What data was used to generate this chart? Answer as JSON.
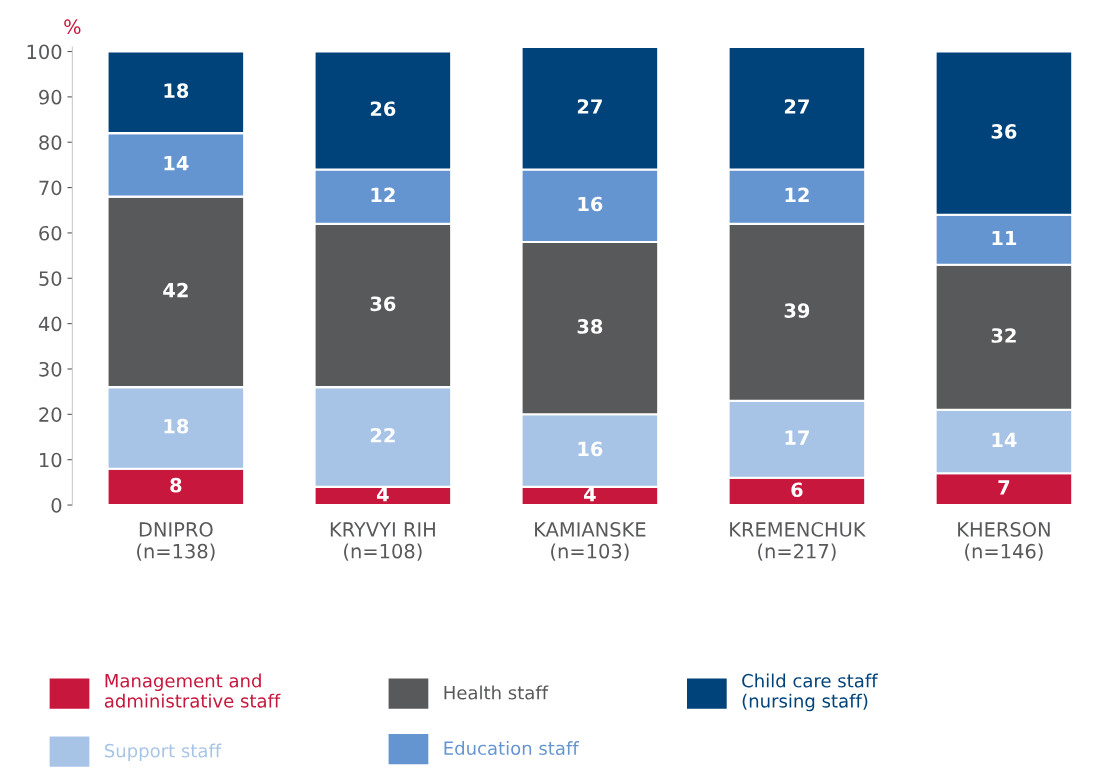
{
  "chart_data": {
    "type": "bar",
    "stacked": true,
    "ylabel": "%",
    "categories": [
      "DNIPRO\n(n=138)",
      "KRYVYI RIH\n(n=108)",
      "KAMIANSKE\n(n=103)",
      "KREMENCHUK\n(n=217)",
      "KHERSON\n(n=146)"
    ],
    "series": [
      {
        "name": "Management and\nadministrative staff",
        "color": "#c8173c",
        "values": [
          8,
          4,
          4,
          6,
          7
        ]
      },
      {
        "name": "Support staff",
        "color": "#a7c4e6",
        "values": [
          18,
          22,
          16,
          17,
          14
        ]
      },
      {
        "name": "Health staff",
        "color": "#58595b",
        "values": [
          42,
          36,
          38,
          39,
          32
        ]
      },
      {
        "name": "Education staff",
        "color": "#6495d0",
        "values": [
          14,
          12,
          16,
          12,
          11
        ]
      },
      {
        "name": "Child care staff\n(nursing staff)",
        "color": "#00437a",
        "values": [
          18,
          26,
          27,
          27,
          36
        ]
      }
    ],
    "ylim": [
      0,
      101
    ],
    "yticks": [
      0,
      10,
      20,
      30,
      40,
      50,
      60,
      70,
      80,
      90,
      100
    ],
    "data_labels": true,
    "grid": false,
    "legend": "bottom"
  }
}
